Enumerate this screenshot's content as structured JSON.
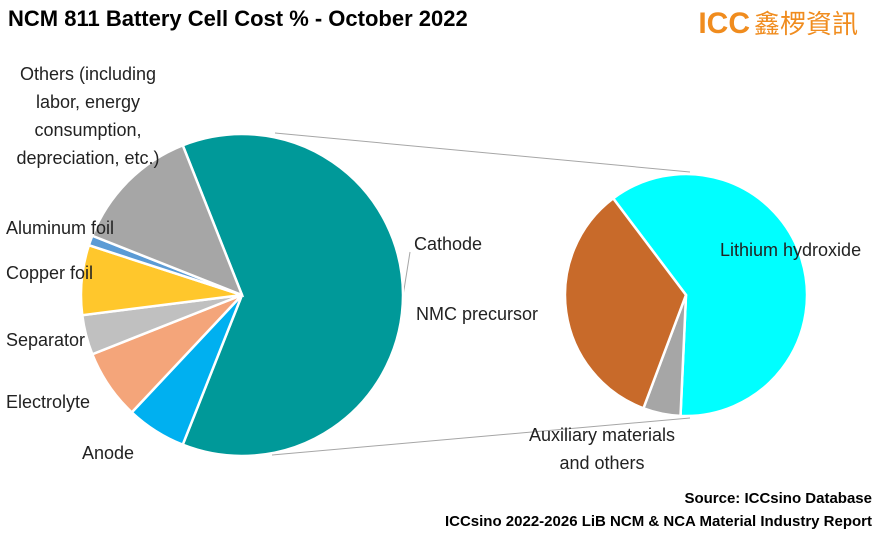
{
  "chart_data": {
    "type": "pie",
    "title": "NCM 811 Battery Cell Cost %  - October 2022",
    "categories": [
      "Cathode",
      "Anode",
      "Electrolyte",
      "Separator",
      "Copper foil",
      "Aluminum foil",
      "Others (including labor, energy consumption, depreciation, etc.)"
    ],
    "values": [
      62,
      6,
      7,
      4,
      7,
      1,
      13
    ],
    "colors": [
      "#009999",
      "#00b0f0",
      "#f4a57a",
      "#c0c0c0",
      "#ffc72c",
      "#5b9bd5",
      "#a6a6a6"
    ],
    "secondary": {
      "categories": [
        "Lithium hydroxide",
        "Auxiliary materials and others",
        "NMC precursor"
      ],
      "values": [
        61,
        5,
        34
      ],
      "colors": [
        "#00ffff",
        "#a6a6a6",
        "#c86a2a"
      ]
    }
  },
  "logo": "ICC",
  "logo_cn": "鑫椤資訊",
  "source": "Source: ICCsino Database",
  "report": "ICCsino 2022-2026 LiB NCM & NCA Material Industry Report"
}
